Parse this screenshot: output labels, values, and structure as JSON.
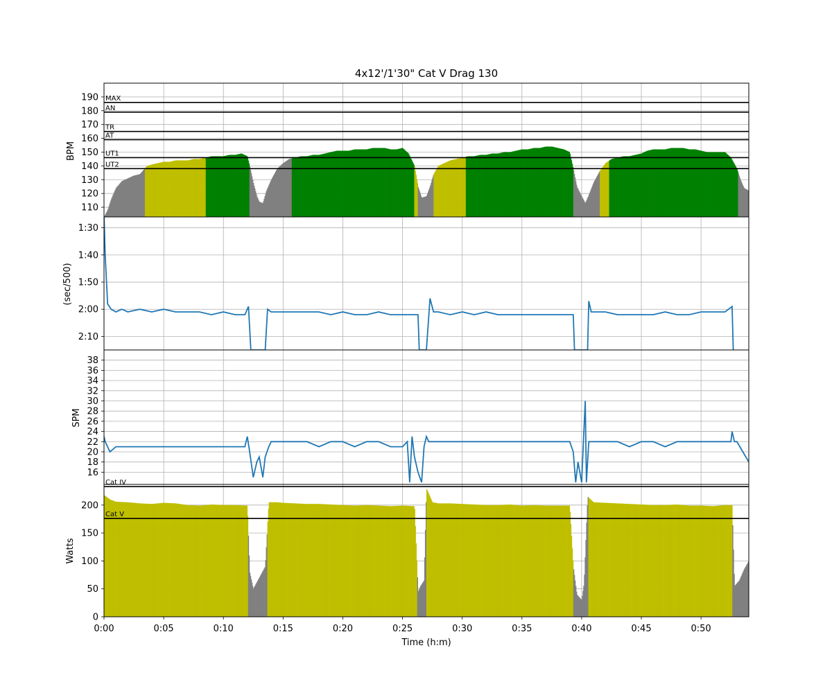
{
  "title": "4x12'/1'30\" Cat V Drag 130",
  "x_axis": {
    "label": "Time (h:m)",
    "ticks": [
      {
        "min": 0,
        "label": "0:00"
      },
      {
        "min": 5,
        "label": "0:05"
      },
      {
        "min": 10,
        "label": "0:10"
      },
      {
        "min": 15,
        "label": "0:15"
      },
      {
        "min": 20,
        "label": "0:20"
      },
      {
        "min": 25,
        "label": "0:25"
      },
      {
        "min": 30,
        "label": "0:30"
      },
      {
        "min": 35,
        "label": "0:35"
      },
      {
        "min": 40,
        "label": "0:40"
      },
      {
        "min": 45,
        "label": "0:45"
      },
      {
        "min": 50,
        "label": "0:50"
      }
    ]
  },
  "colors": {
    "zone_gray": "#808080",
    "zone_yellow": "#bfbf00",
    "zone_green": "#008000",
    "line_blue": "#1f77b4",
    "grid": "#b0b0b0"
  },
  "chart_data": [
    {
      "type": "area",
      "panel": "heart_rate",
      "ylabel": "BPM",
      "xlim": [
        0,
        54
      ],
      "ylim": [
        103,
        200
      ],
      "ytick_labels": [
        "110",
        "120",
        "130",
        "140",
        "150",
        "160",
        "170",
        "180",
        "190"
      ],
      "zone_lines": [
        {
          "label": "MAX",
          "value": 186
        },
        {
          "label": "AN",
          "value": 179
        },
        {
          "label": "TR",
          "value": 165
        },
        {
          "label": "AT",
          "value": 159
        },
        {
          "label": "UT1",
          "value": 146
        },
        {
          "label": "UT2",
          "value": 138
        }
      ],
      "x": [
        0,
        0.3,
        0.6,
        1,
        1.5,
        2,
        2.5,
        3,
        3.3,
        3.6,
        4,
        4.5,
        5,
        5.5,
        6,
        6.5,
        7,
        7.5,
        8,
        8.5,
        9,
        9.5,
        10,
        10.5,
        11,
        11.5,
        12,
        12.2,
        12.5,
        12.8,
        13,
        13.3,
        13.6,
        14,
        14.5,
        15,
        15.5,
        16,
        16.5,
        17,
        17.5,
        18,
        18.5,
        19,
        19.5,
        20,
        20.5,
        21,
        21.5,
        22,
        22.5,
        23,
        23.5,
        24,
        24.5,
        25,
        25.5,
        26,
        26.3,
        26.6,
        27,
        27.3,
        27.6,
        28,
        28.5,
        29,
        29.5,
        30,
        30.5,
        31,
        31.5,
        32,
        32.5,
        33,
        33.5,
        34,
        34.5,
        35,
        35.5,
        36,
        36.5,
        37,
        37.5,
        38,
        38.5,
        39,
        39.3,
        39.6,
        40,
        40.3,
        40.6,
        41,
        41.5,
        42,
        42.5,
        43,
        43.5,
        44,
        44.5,
        45,
        45.5,
        46,
        46.5,
        47,
        47.5,
        48,
        48.5,
        49,
        49.5,
        50,
        50.5,
        51,
        51.5,
        52,
        52.5,
        53,
        53.3,
        53.6,
        54
      ],
      "values": [
        103,
        108,
        116,
        124,
        129,
        131,
        133,
        134,
        137,
        140,
        141,
        142,
        143,
        143,
        144,
        144,
        144,
        145,
        145,
        146,
        147,
        147,
        147,
        148,
        148,
        149,
        147,
        140,
        128,
        118,
        114,
        113,
        122,
        130,
        138,
        142,
        145,
        146,
        147,
        147,
        148,
        148,
        149,
        150,
        151,
        151,
        151,
        152,
        152,
        152,
        153,
        153,
        153,
        152,
        152,
        153,
        149,
        140,
        125,
        117,
        118,
        125,
        134,
        140,
        142,
        144,
        145,
        146,
        147,
        147,
        148,
        148,
        149,
        149,
        150,
        150,
        151,
        152,
        152,
        153,
        153,
        154,
        154,
        153,
        152,
        150,
        138,
        125,
        118,
        113,
        119,
        128,
        136,
        142,
        145,
        146,
        147,
        147,
        148,
        149,
        151,
        152,
        152,
        152,
        153,
        153,
        153,
        152,
        152,
        151,
        150,
        150,
        150,
        150,
        146,
        138,
        130,
        124,
        122
      ],
      "zone_bands": [
        {
          "from": 0,
          "to": 3.4,
          "zone": "gray"
        },
        {
          "from": 3.4,
          "to": 8.5,
          "zone": "yellow"
        },
        {
          "from": 8.5,
          "to": 12.2,
          "zone": "green"
        },
        {
          "from": 12.2,
          "to": 15.7,
          "zone": "gray"
        },
        {
          "from": 15.7,
          "to": 26.0,
          "zone": "green"
        },
        {
          "from": 26.0,
          "to": 26.3,
          "zone": "yellow"
        },
        {
          "from": 26.3,
          "to": 27.6,
          "zone": "gray"
        },
        {
          "from": 27.6,
          "to": 30.3,
          "zone": "yellow"
        },
        {
          "from": 30.3,
          "to": 39.3,
          "zone": "green"
        },
        {
          "from": 39.3,
          "to": 41.5,
          "zone": "gray"
        },
        {
          "from": 41.5,
          "to": 42.3,
          "zone": "yellow"
        },
        {
          "from": 42.3,
          "to": 53.1,
          "zone": "green"
        },
        {
          "from": 53.1,
          "to": 54,
          "zone": "gray"
        }
      ]
    },
    {
      "type": "line",
      "panel": "pace",
      "ylabel": "(sec/500)",
      "xlim": [
        0,
        54
      ],
      "ylim": [
        135,
        86
      ],
      "ytick_labels": [
        "1:30",
        "1:40",
        "1:50",
        "2:00",
        "2:10"
      ],
      "ytick_values": [
        90,
        100,
        110,
        120,
        130
      ],
      "x": [
        0,
        0.1,
        0.3,
        0.6,
        1,
        1.5,
        2,
        3,
        4,
        5,
        6,
        7,
        8,
        9,
        10,
        11,
        11.8,
        12.1,
        12.3,
        12.8,
        13.5,
        13.7,
        14,
        15,
        16,
        17,
        18,
        19,
        20,
        21,
        22,
        23,
        24,
        25,
        26,
        26.3,
        26.4,
        26.8,
        27.0,
        27.3,
        27.6,
        28,
        29,
        30,
        31,
        32,
        33,
        34,
        35,
        36,
        37,
        38,
        39,
        39.3,
        39.4,
        39.8,
        40.5,
        40.6,
        40.8,
        41,
        42,
        43,
        44,
        45,
        46,
        47,
        48,
        49,
        50,
        51,
        52,
        52.6,
        52.7
      ],
      "values": [
        85,
        100,
        118,
        120,
        121,
        120,
        121,
        120,
        121,
        120,
        121,
        121,
        121,
        122,
        121,
        122,
        122,
        119,
        135,
        135,
        135,
        120,
        121,
        121,
        121,
        121,
        121,
        122,
        121,
        122,
        122,
        121,
        122,
        122,
        122,
        122,
        135,
        135,
        135,
        116,
        121,
        121,
        122,
        121,
        122,
        121,
        122,
        122,
        122,
        122,
        122,
        122,
        122,
        122,
        135,
        135,
        135,
        117,
        121,
        121,
        121,
        122,
        122,
        122,
        122,
        121,
        122,
        122,
        121,
        121,
        121,
        119,
        135
      ]
    },
    {
      "type": "line",
      "panel": "stroke_rate",
      "ylabel": "SPM",
      "xlim": [
        0,
        54
      ],
      "ylim": [
        13.6,
        40
      ],
      "ytick_labels": [
        "16",
        "18",
        "20",
        "22",
        "24",
        "26",
        "28",
        "30",
        "32",
        "34",
        "36",
        "38"
      ],
      "x": [
        0,
        0.1,
        0.3,
        0.5,
        1,
        2,
        3,
        4,
        5,
        6,
        7,
        8,
        9,
        10,
        11,
        11.8,
        12.0,
        12.2,
        12.5,
        12.8,
        13.0,
        13.3,
        13.5,
        13.8,
        14,
        15,
        16,
        17,
        18,
        19,
        20,
        21,
        22,
        23,
        24,
        25,
        25.4,
        25.6,
        25.8,
        26.0,
        26.3,
        26.6,
        26.8,
        27.0,
        27.2,
        28,
        29,
        30,
        31,
        32,
        33,
        34,
        35,
        36,
        37,
        38,
        39,
        39.3,
        39.5,
        39.7,
        40.0,
        40.3,
        40.4,
        40.6,
        41,
        42,
        43,
        44,
        45,
        46,
        47,
        48,
        49,
        50,
        51,
        52,
        52.5,
        52.6,
        52.8,
        53,
        53.5,
        54
      ],
      "values": [
        23,
        22,
        21,
        20,
        21,
        21,
        21,
        21,
        21,
        21,
        21,
        21,
        21,
        21,
        21,
        21,
        23,
        20,
        15,
        18,
        19,
        15,
        19,
        21,
        22,
        22,
        22,
        22,
        21,
        22,
        22,
        21,
        22,
        22,
        21,
        21,
        22,
        14,
        23,
        19,
        16,
        14,
        21,
        23,
        22,
        22,
        22,
        22,
        22,
        22,
        22,
        22,
        22,
        22,
        22,
        22,
        22,
        20,
        14,
        18,
        14,
        30,
        14,
        22,
        22,
        22,
        22,
        21,
        22,
        22,
        21,
        22,
        22,
        22,
        22,
        22,
        22,
        24,
        22,
        22,
        20,
        18
      ]
    },
    {
      "type": "bar",
      "panel": "power",
      "ylabel": "Watts",
      "xlim": [
        0,
        54
      ],
      "ylim": [
        0,
        237
      ],
      "ytick_labels": [
        "0",
        "50",
        "100",
        "150",
        "200"
      ],
      "ytick_values": [
        0,
        50,
        100,
        150,
        200
      ],
      "zone_lines": [
        {
          "label": "Cat IV",
          "value": 233
        },
        {
          "label": "Cat V",
          "value": 176
        }
      ],
      "x": [
        0,
        0.5,
        1,
        2,
        3,
        4,
        5,
        6,
        7,
        8,
        9,
        10,
        11,
        12,
        12.2,
        12.5,
        13,
        13.5,
        13.8,
        14.5,
        15,
        16,
        17,
        18,
        19,
        20,
        21,
        22,
        23,
        24,
        25,
        26,
        26.3,
        26.5,
        26.8,
        27.0,
        27.5,
        28,
        29,
        30,
        31,
        32,
        33,
        34,
        35,
        36,
        37,
        38,
        39,
        39.3,
        39.6,
        40,
        40.2,
        40.5,
        41,
        42,
        43,
        44,
        45,
        46,
        47,
        48,
        49,
        50,
        51,
        52,
        52.6,
        52.8,
        53.2,
        53.6,
        54
      ],
      "values": [
        218,
        210,
        206,
        205,
        203,
        202,
        204,
        203,
        200,
        199,
        201,
        200,
        200,
        199,
        80,
        50,
        70,
        90,
        205,
        205,
        204,
        203,
        202,
        202,
        201,
        200,
        199,
        200,
        199,
        198,
        199,
        198,
        45,
        55,
        65,
        230,
        205,
        203,
        203,
        202,
        201,
        200,
        200,
        201,
        199,
        200,
        199,
        199,
        199,
        90,
        40,
        30,
        60,
        215,
        205,
        204,
        203,
        202,
        201,
        200,
        200,
        201,
        199,
        199,
        198,
        200,
        200,
        55,
        65,
        85,
        100
      ],
      "zones": [
        {
          "from": 0,
          "to": 12.05,
          "zone": "yellow"
        },
        {
          "from": 12.05,
          "to": 13.7,
          "zone": "gray"
        },
        {
          "from": 13.7,
          "to": 26.2,
          "zone": "yellow"
        },
        {
          "from": 26.2,
          "to": 27.0,
          "zone": "gray"
        },
        {
          "from": 27.0,
          "to": 39.3,
          "zone": "yellow"
        },
        {
          "from": 39.3,
          "to": 40.55,
          "zone": "gray"
        },
        {
          "from": 40.55,
          "to": 52.6,
          "zone": "yellow"
        },
        {
          "from": 52.6,
          "to": 54,
          "zone": "gray"
        }
      ]
    }
  ]
}
